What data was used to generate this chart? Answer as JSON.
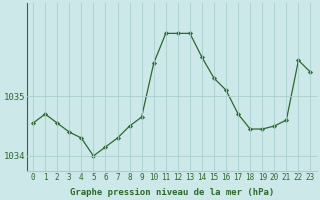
{
  "x": [
    0,
    1,
    2,
    3,
    4,
    5,
    6,
    7,
    8,
    9,
    10,
    11,
    12,
    13,
    14,
    15,
    16,
    17,
    18,
    19,
    20,
    21,
    22,
    23
  ],
  "y": [
    1034.55,
    1034.7,
    1034.55,
    1034.4,
    1034.3,
    1034.0,
    1034.15,
    1034.3,
    1034.5,
    1034.65,
    1035.55,
    1036.05,
    1036.05,
    1036.05,
    1035.65,
    1035.3,
    1035.1,
    1034.7,
    1034.45,
    1034.45,
    1034.5,
    1034.6,
    1035.6,
    1035.4
  ],
  "ylim_min": 1033.75,
  "ylim_max": 1036.55,
  "ytick1": 1034,
  "ytick2": 1035,
  "xticks": [
    0,
    1,
    2,
    3,
    4,
    5,
    6,
    7,
    8,
    9,
    10,
    11,
    12,
    13,
    14,
    15,
    16,
    17,
    18,
    19,
    20,
    21,
    22,
    23
  ],
  "line_color": "#2d6a2d",
  "bg_color": "#cce8e8",
  "grid_color": "#aacece",
  "xlabel": "Graphe pression niveau de la mer (hPa)",
  "tick_fontsize": 5.5,
  "ylabel_fontsize": 6.5,
  "xlabel_fontsize": 6.5,
  "figsize": [
    3.2,
    2.0
  ],
  "dpi": 100
}
